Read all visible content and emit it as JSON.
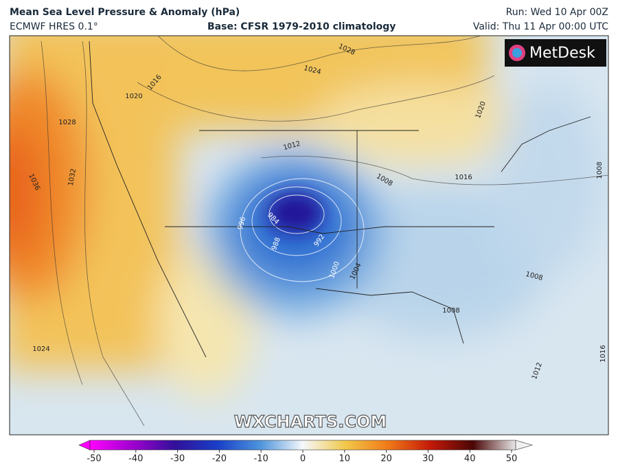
{
  "header": {
    "title": "Mean Sea Level Pressure & Anomaly (hPa)",
    "model": "ECMWF HRES 0.1°",
    "base": "Base: CFSR 1979-2010 climatology",
    "run": "Run: Wed 10 Apr 00Z",
    "valid": "Valid: Thu 11 Apr 00:00 UTC"
  },
  "logo": "MetDesk",
  "watermark": "WXCHARTS.COM",
  "isobar_labels": [
    1028,
    1024,
    1016,
    1020,
    1028,
    1036,
    1032,
    1012,
    1008,
    1016,
    1020,
    1008,
    984,
    988,
    992,
    996,
    1000,
    1004,
    1008,
    1008,
    1012,
    1016,
    1024
  ],
  "colorbar": {
    "ticks": [
      -50,
      -40,
      -30,
      -20,
      -10,
      0,
      10,
      20,
      30,
      40,
      50
    ]
  }
}
